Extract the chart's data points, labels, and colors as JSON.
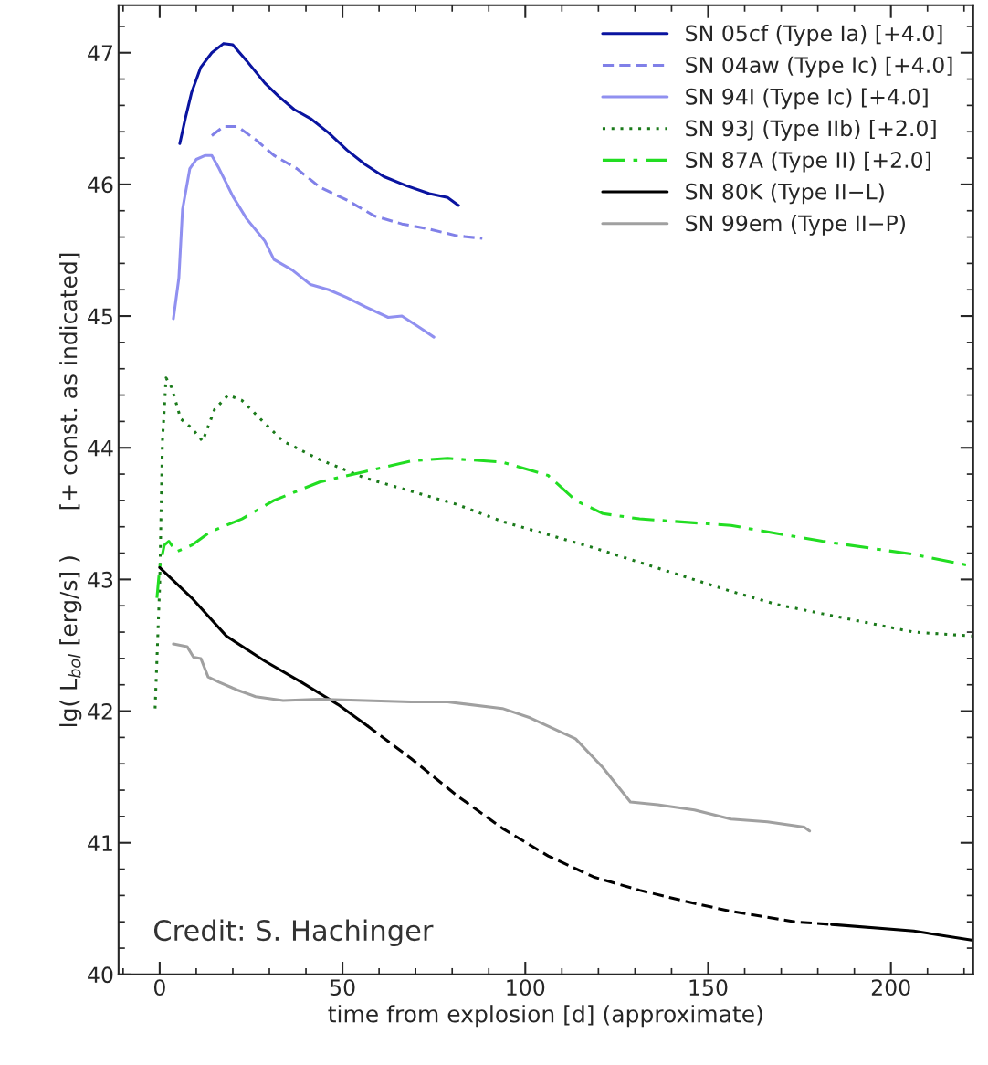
{
  "chart_data": {
    "type": "line",
    "xlabel": "time from explosion [d] (approximate)",
    "ylabel": "lg( L$_{bol}$ [erg/s] )      [+ const. as indicated]",
    "xlim": [
      -11.25,
      222.5
    ],
    "ylim": [
      40,
      47.36
    ],
    "xticks": [
      0,
      50,
      100,
      150,
      200
    ],
    "yticks": [
      40,
      41,
      42,
      43,
      44,
      45,
      46,
      47
    ],
    "grid": false,
    "legend": "top right",
    "annotations": [
      "Credit: S. Hachinger"
    ],
    "series": [
      {
        "name": "SN 05cf (Type Ia) [+4.0]",
        "color": "#0a14a0",
        "line_style": "solid",
        "x": [
          5.5,
          7,
          8.75,
          11.25,
          14.25,
          17.5,
          20,
          23.75,
          28.75,
          32.5,
          36.75,
          41.25,
          46.25,
          51.25,
          56.25,
          61.25,
          67.5,
          73.75,
          78.75,
          81.75
        ],
        "values": [
          46.31,
          46.5,
          46.7,
          46.89,
          47.0,
          47.07,
          47.06,
          46.94,
          46.77,
          46.67,
          46.57,
          46.5,
          46.39,
          46.26,
          46.15,
          46.06,
          45.99,
          45.93,
          45.9,
          45.84
        ]
      },
      {
        "name": "SN 04aw (Type Ic) [+4.0]",
        "color": "#8080e8",
        "line_style": "dashed",
        "x": [
          14.25,
          17.5,
          21.25,
          26.25,
          31.25,
          37.5,
          43.75,
          51.25,
          58.75,
          66.25,
          73.75,
          81.25,
          88.25
        ],
        "values": [
          46.37,
          46.44,
          46.44,
          46.34,
          46.22,
          46.12,
          45.98,
          45.88,
          45.76,
          45.7,
          45.66,
          45.61,
          45.59
        ]
      },
      {
        "name": "SN 94I (Type Ic) [+4.0]",
        "color": "#9090f0",
        "line_style": "solid",
        "x": [
          3.75,
          5.25,
          6.25,
          8.25,
          10,
          12.5,
          14.25,
          16.25,
          20,
          23.75,
          28.75,
          31.25,
          36.25,
          41.25,
          46.25,
          51.25,
          56.25,
          62.5,
          66.25,
          71.25,
          75
        ],
        "values": [
          44.98,
          45.29,
          45.81,
          46.12,
          46.19,
          46.22,
          46.22,
          46.12,
          45.91,
          45.74,
          45.57,
          45.43,
          45.35,
          45.24,
          45.2,
          45.14,
          45.07,
          44.99,
          45.0,
          44.91,
          44.84
        ]
      },
      {
        "name": "SN 93J (Type IIb) [+2.0]",
        "color": "#1a7a1a",
        "line_style": "dotted",
        "x": [
          -1.25,
          0,
          0.75,
          1.75,
          3.25,
          5.75,
          8.75,
          11.75,
          15,
          18.75,
          22.5,
          27.5,
          33.75,
          43.75,
          56.25,
          68.75,
          81.25,
          93.75,
          106.25,
          118.75,
          131.25,
          143.75,
          156.25,
          168.75,
          181.25,
          193.75,
          206.25,
          222.5
        ],
        "values": [
          42.02,
          42.95,
          44.05,
          44.53,
          44.46,
          44.22,
          44.15,
          44.05,
          44.29,
          44.4,
          44.36,
          44.22,
          44.05,
          43.91,
          43.77,
          43.67,
          43.57,
          43.44,
          43.34,
          43.24,
          43.13,
          43.02,
          42.91,
          42.81,
          42.74,
          42.67,
          42.6,
          42.57
        ]
      },
      {
        "name": "SN 87A (Type II) [+2.0]",
        "color": "#22dd22",
        "line_style": "dashdot",
        "x": [
          -0.75,
          0,
          1.25,
          2.5,
          4.5,
          8.75,
          13.75,
          22.5,
          31.25,
          43.75,
          56.25,
          68.75,
          78.75,
          93.75,
          106.25,
          113.75,
          121.25,
          131.25,
          156.25,
          181.25,
          206.25,
          222.5
        ],
        "values": [
          42.86,
          43.09,
          43.26,
          43.29,
          43.21,
          43.26,
          43.36,
          43.46,
          43.6,
          43.74,
          43.82,
          43.9,
          43.92,
          43.89,
          43.79,
          43.6,
          43.5,
          43.46,
          43.41,
          43.29,
          43.19,
          43.1
        ]
      },
      {
        "name": "SN 80K (Type II−L)",
        "color": "#000000",
        "line_style": "solid",
        "x": [
          0,
          8.75,
          18.25,
          28.75,
          38.75,
          48.75,
          56.75
        ],
        "values": [
          43.09,
          42.86,
          42.57,
          42.38,
          42.22,
          42.05,
          41.89
        ]
      },
      {
        "color": "#000000",
        "line_style": "dashed",
        "x": [
          56.75,
          68.75,
          81.25,
          93.75,
          106.25,
          118.75,
          131.25,
          146.25,
          156.25,
          173.75,
          183.75
        ],
        "values": [
          41.89,
          41.64,
          41.36,
          41.11,
          40.9,
          40.74,
          40.64,
          40.54,
          40.48,
          40.4,
          40.38
        ]
      },
      {
        "color": "#000000",
        "line_style": "solid",
        "x": [
          183.75,
          206.25,
          222.5
        ],
        "values": [
          40.38,
          40.33,
          40.26
        ]
      },
      {
        "name": "SN 99em (Type II−P)",
        "color": "#a0a0a0",
        "line_style": "solid",
        "x": [
          3.75,
          7.5,
          9.25,
          11.25,
          13.25,
          16.25,
          21.25,
          26.25,
          33.75,
          43.75,
          56.25,
          68.75,
          78.75,
          93.75,
          101.25,
          113.75,
          121.25,
          128.75,
          136.25,
          146.25,
          156.25,
          166.25,
          176.25,
          177.75
        ],
        "values": [
          42.51,
          42.49,
          42.41,
          42.4,
          42.26,
          42.22,
          42.16,
          42.11,
          42.08,
          42.09,
          42.08,
          42.07,
          42.07,
          42.02,
          41.95,
          41.79,
          41.57,
          41.31,
          41.29,
          41.25,
          41.18,
          41.16,
          41.12,
          41.09
        ]
      }
    ]
  }
}
